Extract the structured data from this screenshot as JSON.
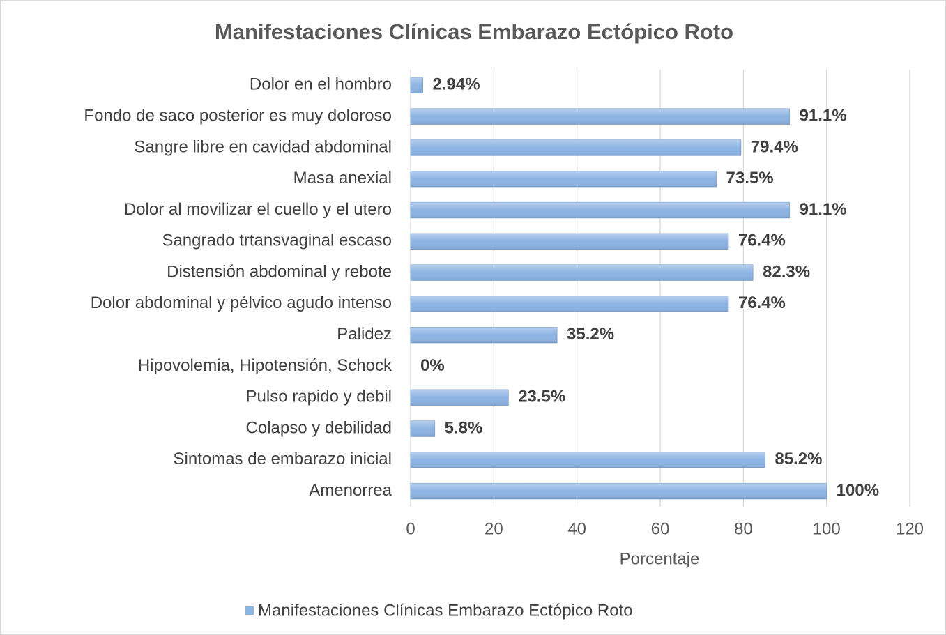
{
  "chart_data": {
    "type": "bar",
    "orientation": "horizontal",
    "title": "Manifestaciones Clínicas Embarazo Ectópico Roto",
    "x_label": "Porcentaje",
    "categories": [
      "Dolor en el hombro",
      "Fondo de saco posterior es muy doloroso",
      "Sangre libre en cavidad abdominal",
      "Masa anexial",
      "Dolor al movilizar el cuello y el utero",
      "Sangrado trtansvaginal escaso",
      "Distensión abdominal y rebote",
      "Dolor abdominal y pélvico agudo intenso",
      "Palidez",
      "Hipovolemia, Hipotensión, Schock",
      "Pulso rapido y debil",
      "Colapso y debilidad",
      "Sintomas de embarazo inicial",
      "Amenorrea"
    ],
    "series": [
      {
        "name": "Manifestaciones Clínicas Embarazo Ectópico Roto",
        "color": "#8eb4e3",
        "values": [
          2.94,
          91.1,
          79.4,
          73.5,
          91.1,
          76.4,
          82.3,
          76.4,
          35.2,
          0,
          23.5,
          5.8,
          85.2,
          100
        ],
        "value_labels": [
          "2.94%",
          "91.1%",
          "79.4%",
          "73.5%",
          "91.1%",
          "76.4%",
          "82.3%",
          "76.4%",
          "35.2%",
          "0%",
          "23.5%",
          "5.8%",
          "85.2%",
          "100%"
        ]
      }
    ],
    "xlim": [
      0,
      120
    ],
    "xticks": [
      0,
      20,
      40,
      60,
      80,
      100,
      120
    ],
    "grid": true,
    "legend": "bottom"
  }
}
